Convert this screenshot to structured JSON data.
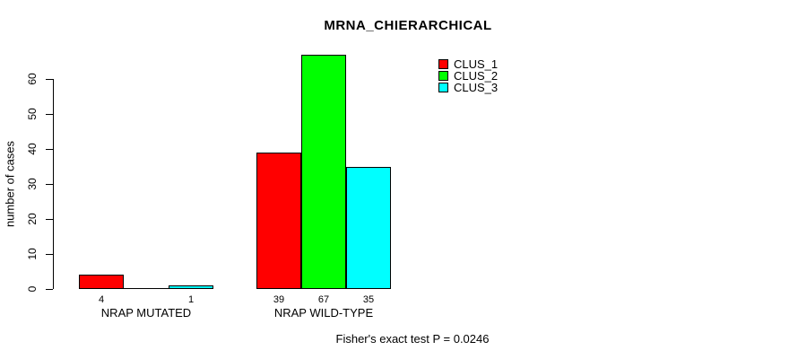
{
  "chart_data": {
    "type": "bar",
    "title": "MRNA_CHIERARCHICAL",
    "ylabel": "number of cases",
    "xlabel": "",
    "categories": [
      "NRAP MUTATED",
      "NRAP WILD-TYPE"
    ],
    "series": [
      {
        "name": "CLUS_1",
        "color": "#ff0000",
        "values": [
          4,
          39
        ],
        "bar_labels": [
          "4",
          "39"
        ]
      },
      {
        "name": "CLUS_2",
        "color": "#00ff00",
        "values": [
          0,
          67
        ],
        "bar_labels": [
          "",
          "67"
        ]
      },
      {
        "name": "CLUS_3",
        "color": "#00ffff",
        "values": [
          1,
          35
        ],
        "bar_labels": [
          "1",
          "35"
        ]
      }
    ],
    "yticks": [
      0,
      10,
      20,
      30,
      40,
      50,
      60
    ],
    "ylim": [
      0,
      67
    ],
    "grid": false,
    "legend_position": "top-right",
    "legend_entries": [
      {
        "label": "CLUS_1",
        "color": "#ff0000"
      },
      {
        "label": "CLUS_2",
        "color": "#00ff00"
      },
      {
        "label": "CLUS_3",
        "color": "#00ffff"
      }
    ],
    "annotation": "Fisher's exact test P = 0.0246"
  },
  "colors": {
    "axis": "#000000",
    "background": "#ffffff",
    "clus1": "#ff0000",
    "clus2": "#00ff00",
    "clus3": "#00ffff"
  }
}
